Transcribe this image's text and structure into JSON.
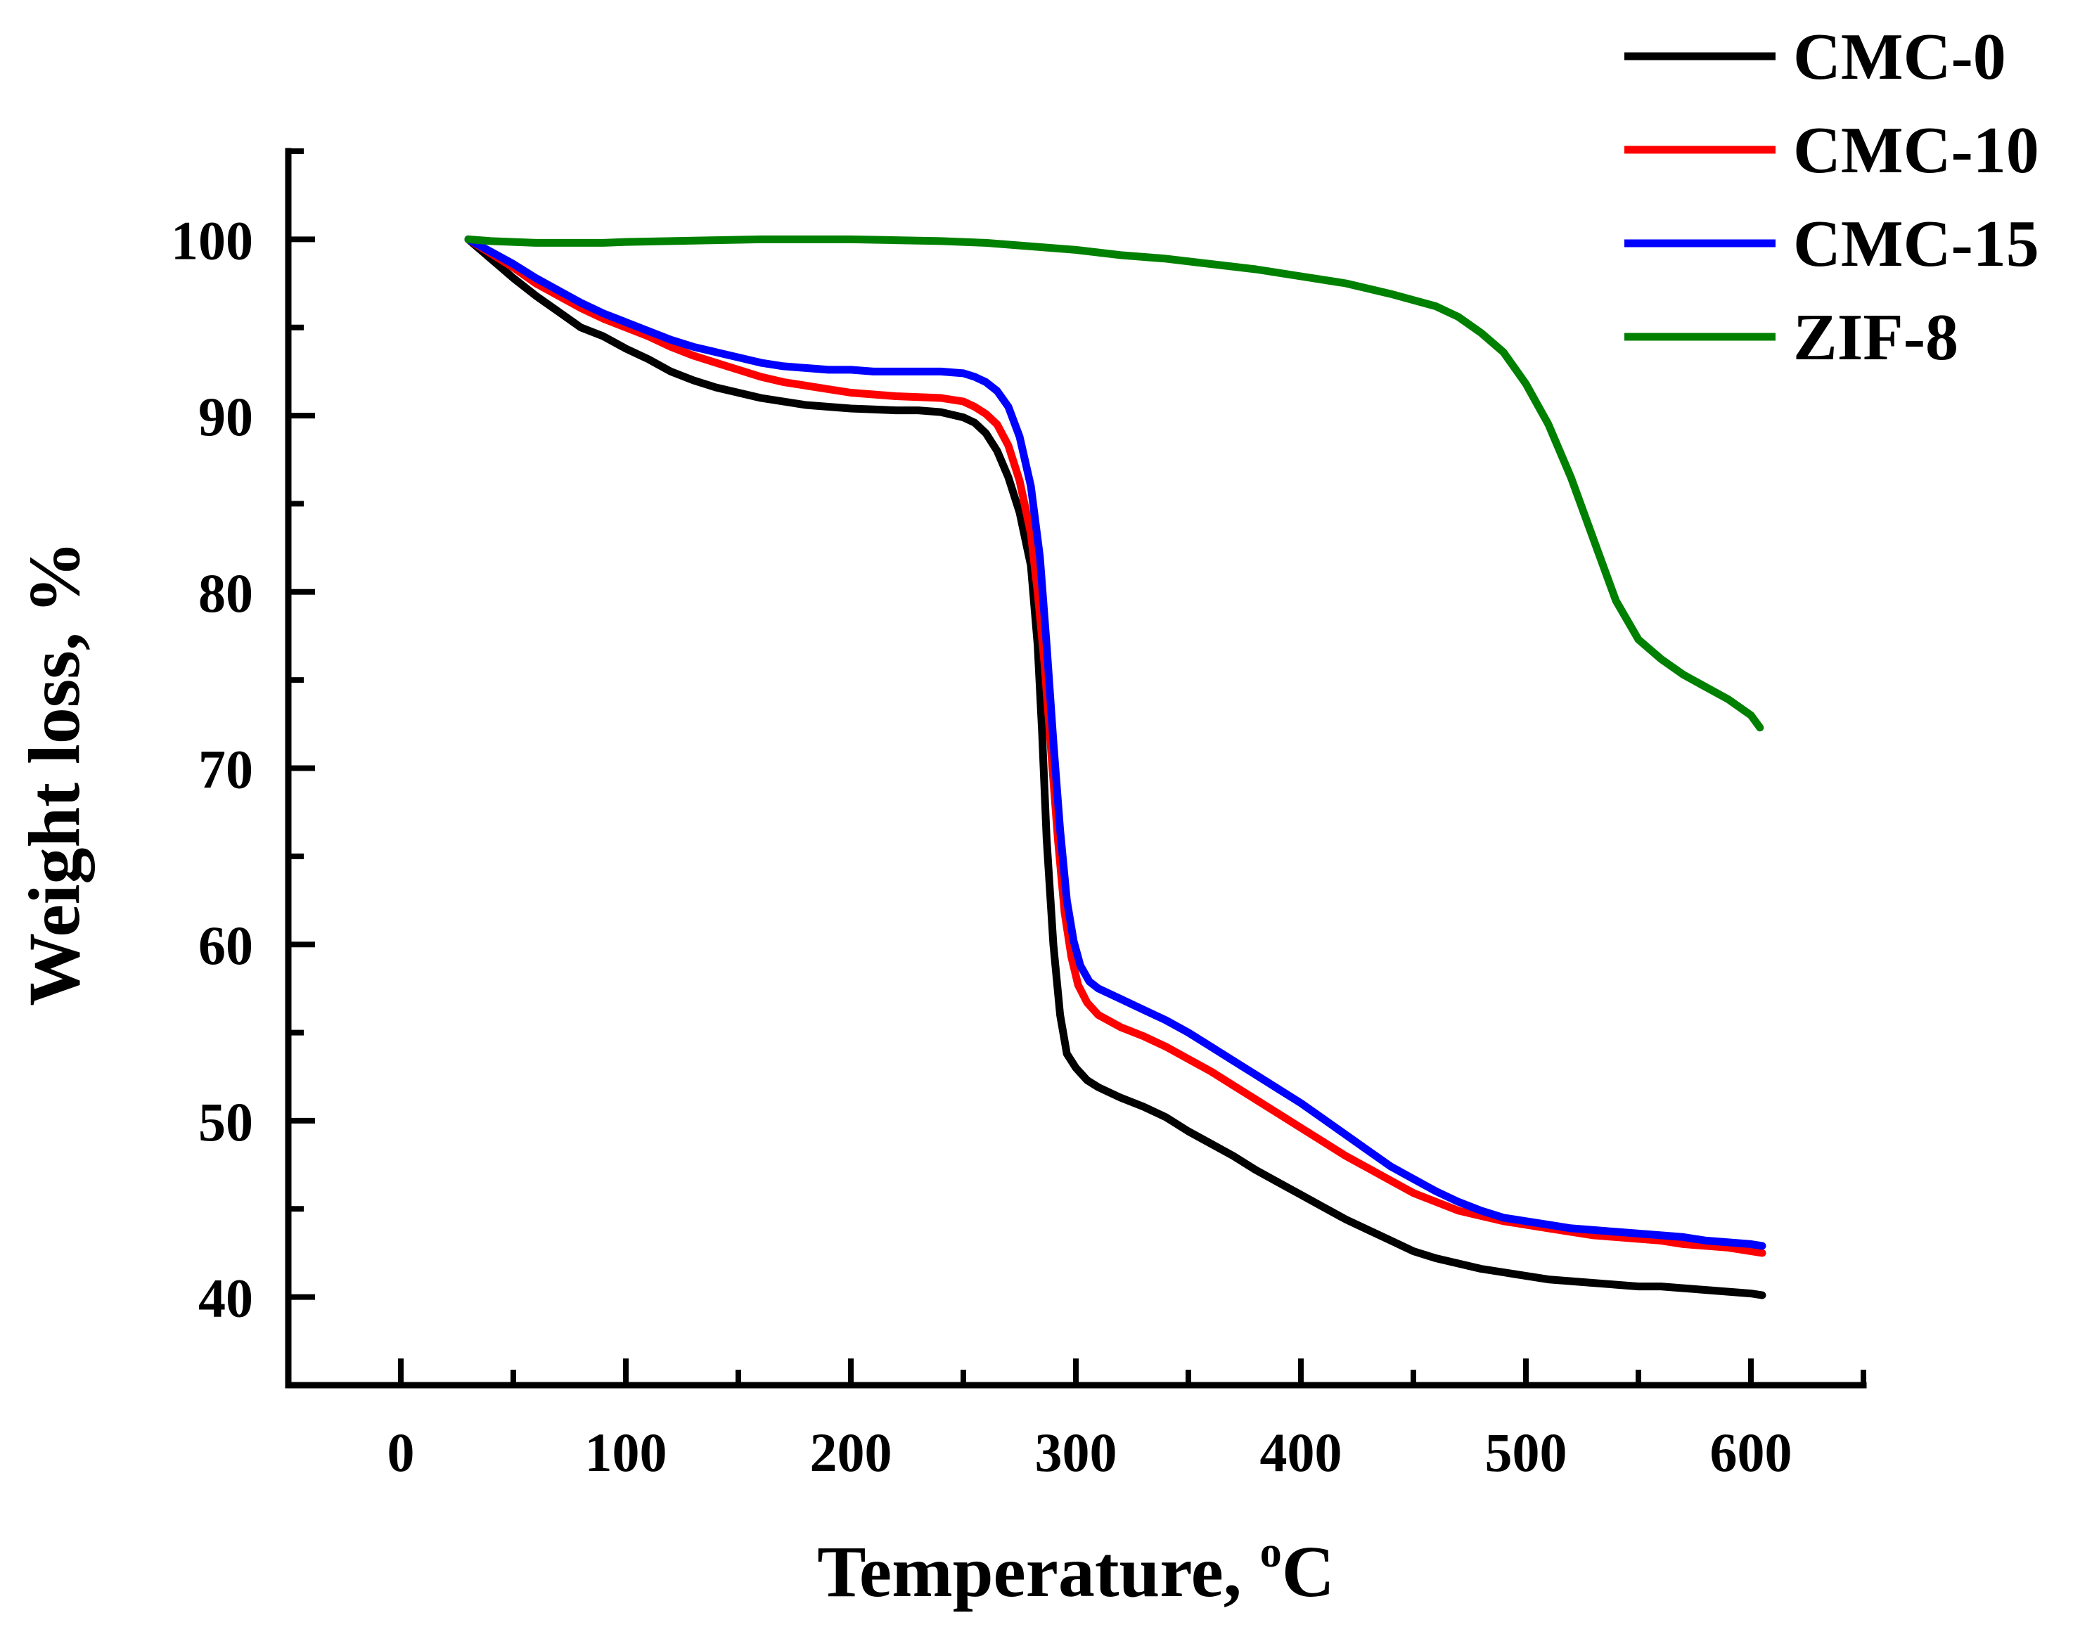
{
  "chart_data": {
    "type": "line",
    "title": "",
    "xlabel": "Temperature, ",
    "xlabel_sup": "o",
    "xlabel_unit": "C",
    "ylabel": "Weight loss, %",
    "xlim": [
      -50,
      650
    ],
    "ylim": [
      35,
      105
    ],
    "xticks": [
      0,
      100,
      200,
      300,
      400,
      500,
      600
    ],
    "xtick_labels": [
      "0",
      "100",
      "200",
      "300",
      "400",
      "500",
      "600"
    ],
    "yticks": [
      40,
      50,
      60,
      70,
      80,
      90,
      100
    ],
    "ytick_labels": [
      "40",
      "50",
      "60",
      "70",
      "80",
      "90",
      "100"
    ],
    "x_minor_ticks": [
      -50,
      50,
      150,
      250,
      350,
      450,
      550,
      650
    ],
    "y_minor_ticks": [
      35,
      45,
      55,
      65,
      75,
      85,
      95,
      105
    ],
    "grid": false,
    "legend_position": "top-right",
    "series": [
      {
        "name": "CMC-0",
        "color": "#000000",
        "x": [
          30,
          40,
          50,
          60,
          70,
          80,
          90,
          100,
          110,
          120,
          130,
          140,
          150,
          160,
          170,
          180,
          190,
          200,
          210,
          220,
          230,
          240,
          250,
          255,
          260,
          265,
          270,
          275,
          280,
          283,
          285,
          287,
          290,
          293,
          296,
          300,
          305,
          310,
          320,
          330,
          340,
          350,
          360,
          370,
          380,
          390,
          400,
          410,
          420,
          430,
          440,
          450,
          460,
          470,
          480,
          490,
          500,
          510,
          520,
          530,
          540,
          550,
          560,
          570,
          580,
          590,
          600,
          605
        ],
        "y": [
          100,
          98.9,
          97.8,
          96.8,
          95.9,
          95.0,
          94.5,
          93.8,
          93.2,
          92.5,
          92.0,
          91.6,
          91.3,
          91.0,
          90.8,
          90.6,
          90.5,
          90.4,
          90.35,
          90.3,
          90.3,
          90.2,
          89.9,
          89.6,
          89.0,
          88.0,
          86.5,
          84.5,
          81.5,
          77.0,
          72.0,
          66.0,
          60.0,
          56.0,
          53.8,
          53.0,
          52.3,
          51.9,
          51.3,
          50.8,
          50.2,
          49.4,
          48.7,
          48.0,
          47.2,
          46.5,
          45.8,
          45.1,
          44.4,
          43.8,
          43.2,
          42.6,
          42.2,
          41.9,
          41.6,
          41.4,
          41.2,
          41.0,
          40.9,
          40.8,
          40.7,
          40.6,
          40.6,
          40.5,
          40.4,
          40.3,
          40.2,
          40.1
        ]
      },
      {
        "name": "CMC-10",
        "color": "#ff0000",
        "x": [
          30,
          40,
          50,
          60,
          70,
          80,
          90,
          100,
          110,
          120,
          130,
          140,
          150,
          160,
          170,
          180,
          190,
          200,
          210,
          220,
          230,
          240,
          250,
          255,
          260,
          265,
          270,
          275,
          280,
          283,
          286,
          289,
          292,
          295,
          298,
          301,
          305,
          310,
          320,
          330,
          340,
          350,
          360,
          370,
          380,
          390,
          400,
          410,
          420,
          430,
          440,
          450,
          460,
          470,
          480,
          490,
          500,
          510,
          520,
          530,
          540,
          550,
          560,
          570,
          580,
          590,
          600,
          605
        ],
        "y": [
          100,
          99.2,
          98.4,
          97.5,
          96.8,
          96.1,
          95.5,
          95.0,
          94.5,
          93.9,
          93.4,
          93.0,
          92.6,
          92.2,
          91.9,
          91.7,
          91.5,
          91.3,
          91.2,
          91.1,
          91.05,
          91.0,
          90.8,
          90.5,
          90.1,
          89.5,
          88.3,
          86.3,
          83.3,
          80.0,
          76.0,
          71.0,
          66.0,
          61.8,
          59.3,
          57.7,
          56.7,
          56.0,
          55.3,
          54.8,
          54.2,
          53.5,
          52.8,
          52.0,
          51.2,
          50.4,
          49.6,
          48.8,
          48.0,
          47.3,
          46.6,
          45.9,
          45.4,
          44.9,
          44.6,
          44.3,
          44.1,
          43.9,
          43.7,
          43.5,
          43.4,
          43.3,
          43.2,
          43.0,
          42.9,
          42.8,
          42.6,
          42.5
        ]
      },
      {
        "name": "CMC-15",
        "color": "#0000ff",
        "x": [
          30,
          40,
          50,
          60,
          70,
          80,
          90,
          100,
          110,
          120,
          130,
          140,
          150,
          160,
          170,
          180,
          190,
          200,
          210,
          220,
          230,
          240,
          250,
          255,
          260,
          265,
          270,
          275,
          280,
          284,
          287,
          290,
          293,
          296,
          299,
          302,
          306,
          310,
          320,
          330,
          340,
          350,
          360,
          370,
          380,
          390,
          400,
          410,
          420,
          430,
          440,
          450,
          460,
          470,
          480,
          490,
          500,
          510,
          520,
          530,
          540,
          550,
          560,
          570,
          580,
          590,
          600,
          605
        ],
        "y": [
          100,
          99.3,
          98.6,
          97.8,
          97.1,
          96.4,
          95.8,
          95.3,
          94.8,
          94.3,
          93.9,
          93.6,
          93.3,
          93.0,
          92.8,
          92.7,
          92.6,
          92.6,
          92.5,
          92.5,
          92.5,
          92.5,
          92.4,
          92.2,
          91.9,
          91.4,
          90.5,
          88.8,
          86.0,
          82.0,
          77.0,
          71.5,
          66.5,
          62.5,
          60.2,
          58.8,
          57.9,
          57.5,
          56.9,
          56.3,
          55.7,
          55.0,
          54.2,
          53.4,
          52.6,
          51.8,
          51.0,
          50.1,
          49.2,
          48.3,
          47.4,
          46.7,
          46.0,
          45.4,
          44.9,
          44.5,
          44.3,
          44.1,
          43.9,
          43.8,
          43.7,
          43.6,
          43.5,
          43.4,
          43.2,
          43.1,
          43.0,
          42.9
        ]
      },
      {
        "name": "ZIF-8",
        "color": "#008000",
        "x": [
          30,
          40,
          50,
          60,
          70,
          80,
          90,
          100,
          120,
          140,
          160,
          180,
          200,
          220,
          240,
          260,
          280,
          300,
          320,
          340,
          360,
          380,
          400,
          420,
          440,
          460,
          470,
          480,
          490,
          500,
          510,
          520,
          530,
          540,
          550,
          560,
          570,
          580,
          590,
          600,
          604
        ],
        "y": [
          100,
          99.9,
          99.85,
          99.8,
          99.8,
          99.8,
          99.8,
          99.85,
          99.9,
          99.95,
          100,
          100,
          100,
          99.95,
          99.9,
          99.8,
          99.6,
          99.4,
          99.1,
          98.9,
          98.6,
          98.3,
          97.9,
          97.5,
          96.9,
          96.2,
          95.6,
          94.7,
          93.6,
          91.8,
          89.5,
          86.5,
          83.0,
          79.5,
          77.3,
          76.2,
          75.3,
          74.6,
          73.9,
          73.0,
          72.3
        ]
      }
    ]
  }
}
